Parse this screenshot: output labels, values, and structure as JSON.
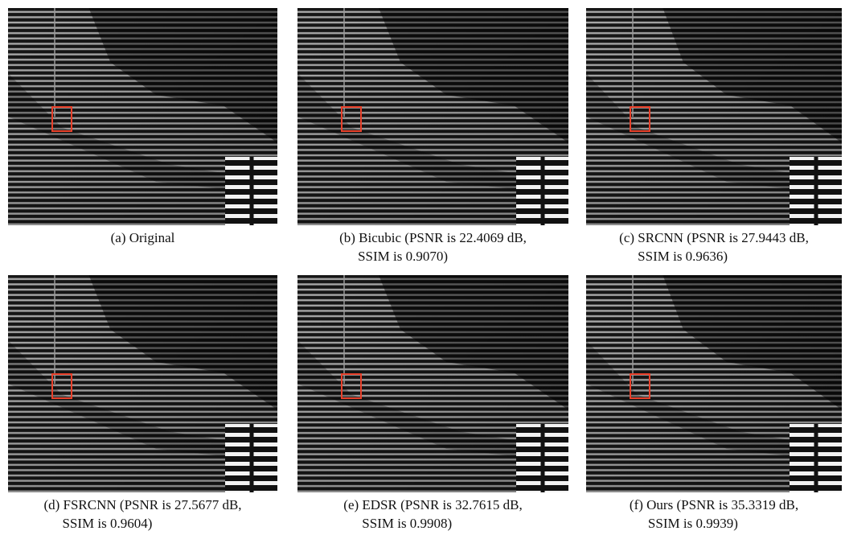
{
  "panels": [
    {
      "caption": [
        "(a) Original"
      ]
    },
    {
      "caption": [
        "(b) Bicubic (PSNR is 22.4069 dB,",
        "SSIM is 0.9070)"
      ]
    },
    {
      "caption": [
        "(c) SRCNN (PSNR is 27.9443 dB,",
        "SSIM is 0.9636)"
      ]
    },
    {
      "caption": [
        "(d) FSRCNN (PSNR is 27.5677 dB,",
        "SSIM is 0.9604)"
      ]
    },
    {
      "caption": [
        "(e) EDSR (PSNR is 32.7615 dB,",
        "SSIM is 0.9908)"
      ]
    },
    {
      "caption": [
        "(f) Ours (PSNR is 35.3319 dB,",
        "SSIM is 0.9939)"
      ]
    }
  ]
}
